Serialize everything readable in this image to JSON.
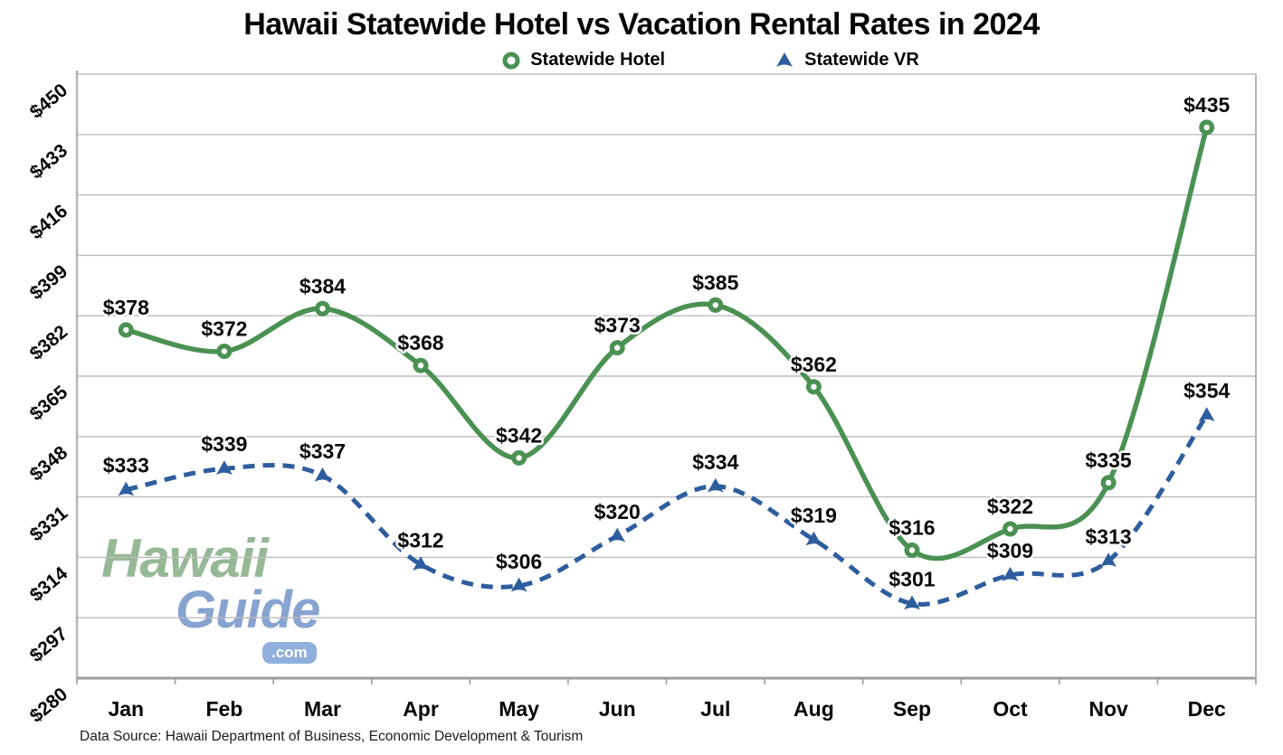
{
  "title": "Hawaii Statewide Hotel vs Vacation Rental Rates in 2024",
  "legend": {
    "items": [
      {
        "label": "Statewide Hotel",
        "marker": "open-circle",
        "color": "#4a9153"
      },
      {
        "label": "Statewide VR",
        "marker": "triangle",
        "color": "#2e5d9e"
      }
    ]
  },
  "footer": {
    "source_text": "Data Source: Hawaii Department of Business, Economic Development & Tourism"
  },
  "watermark": {
    "line1": "Hawaii",
    "line2": "Guide",
    "badge": ".com"
  },
  "chart_data": {
    "type": "line",
    "title": "Hawaii Statewide Hotel vs Vacation Rental Rates in 2024",
    "categories": [
      "Jan",
      "Feb",
      "Mar",
      "Apr",
      "May",
      "Jun",
      "Jul",
      "Aug",
      "Sep",
      "Oct",
      "Nov",
      "Dec"
    ],
    "series": [
      {
        "name": "Statewide Hotel",
        "color": "#4a9153",
        "line_style": "solid",
        "marker": "open-circle",
        "values": [
          378,
          372,
          384,
          368,
          342,
          373,
          385,
          362,
          316,
          322,
          335,
          435
        ]
      },
      {
        "name": "Statewide VR",
        "color": "#2e5d9e",
        "line_style": "dashed",
        "marker": "triangle",
        "values": [
          333,
          339,
          337,
          312,
          306,
          320,
          334,
          319,
          301,
          309,
          313,
          354
        ]
      }
    ],
    "value_prefix": "$",
    "y_ticks": [
      280,
      297,
      314,
      331,
      348,
      365,
      382,
      399,
      416,
      433,
      450
    ],
    "ylim": [
      280,
      450
    ],
    "grid": true,
    "legend_position": "top",
    "data_labels": true
  }
}
